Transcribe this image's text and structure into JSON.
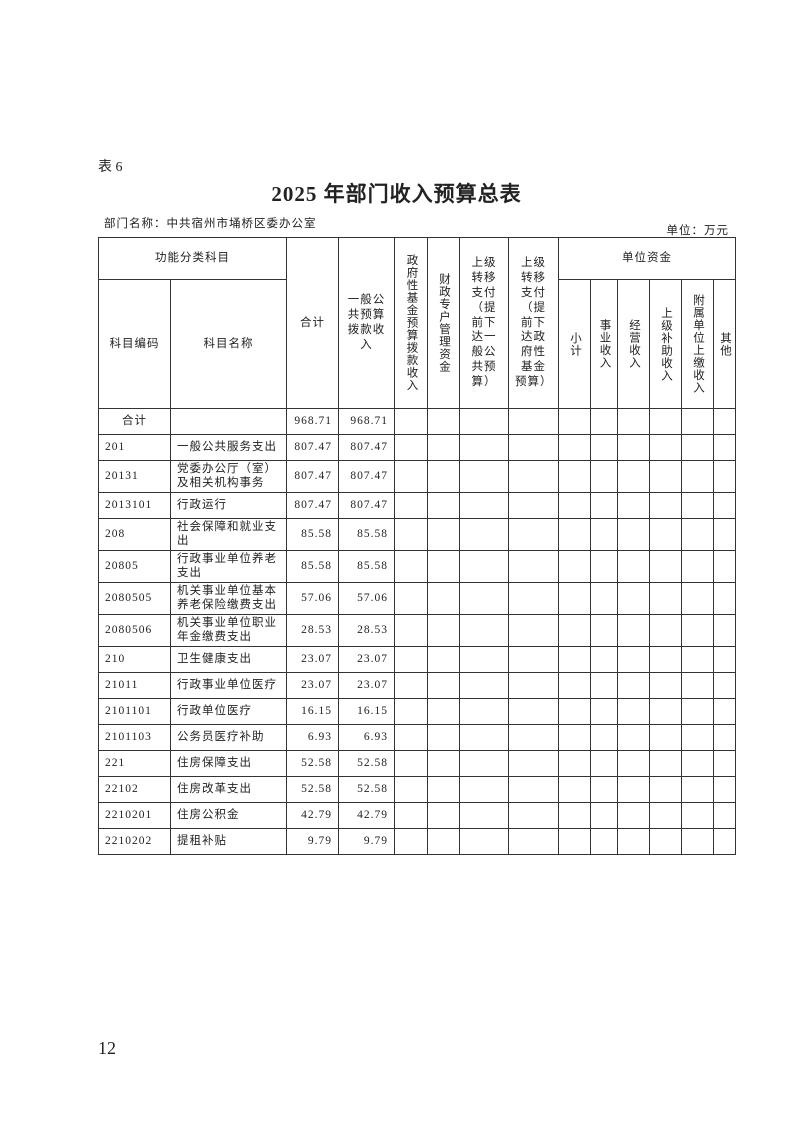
{
  "table_label": "表 6",
  "title": "2025 年部门收入预算总表",
  "department": "部门名称：中共宿州市埇桥区委办公室",
  "unit": "单位：万元",
  "headers": {
    "func_class": "功能分类科目",
    "code": "科目编码",
    "name": "科目名称",
    "total": "合计",
    "general": "一般公共预算拨款收入",
    "gov_fund": "政府性基金预算拨款收入",
    "fiscal_special": "财政专户管理资金",
    "transfer_general": "上级转移支付（提前下达一般公共预算）",
    "transfer_fund": "上级转移支付（提前下达政府性基金预算）",
    "unit_funds": "单位资金",
    "subtotal": "小计",
    "business": "事业收入",
    "operating": "经营收入",
    "superior_subsidy": "上级补助收入",
    "affiliated": "附属单位上缴收入",
    "other": "其他"
  },
  "rows": [
    {
      "code": "合计",
      "name": "",
      "total": "968.71",
      "general": "968.71"
    },
    {
      "code": "201",
      "name": "一般公共服务支出",
      "total": "807.47",
      "general": "807.47"
    },
    {
      "code": "20131",
      "name": "党委办公厅（室）及相关机构事务",
      "total": "807.47",
      "general": "807.47"
    },
    {
      "code": "2013101",
      "name": "行政运行",
      "total": "807.47",
      "general": "807.47"
    },
    {
      "code": "208",
      "name": "社会保障和就业支出",
      "total": "85.58",
      "general": "85.58"
    },
    {
      "code": "20805",
      "name": "行政事业单位养老支出",
      "total": "85.58",
      "general": "85.58"
    },
    {
      "code": "2080505",
      "name": "机关事业单位基本养老保险缴费支出",
      "total": "57.06",
      "general": "57.06"
    },
    {
      "code": "2080506",
      "name": "机关事业单位职业年金缴费支出",
      "total": "28.53",
      "general": "28.53"
    },
    {
      "code": "210",
      "name": "卫生健康支出",
      "total": "23.07",
      "general": "23.07"
    },
    {
      "code": "21011",
      "name": "行政事业单位医疗",
      "total": "23.07",
      "general": "23.07"
    },
    {
      "code": "2101101",
      "name": "行政单位医疗",
      "total": "16.15",
      "general": "16.15"
    },
    {
      "code": "2101103",
      "name": "公务员医疗补助",
      "total": "6.93",
      "general": "6.93"
    },
    {
      "code": "221",
      "name": "住房保障支出",
      "total": "52.58",
      "general": "52.58"
    },
    {
      "code": "22102",
      "name": "住房改革支出",
      "total": "52.58",
      "general": "52.58"
    },
    {
      "code": "2210201",
      "name": "住房公积金",
      "total": "42.79",
      "general": "42.79"
    },
    {
      "code": "2210202",
      "name": "提租补贴",
      "total": "9.79",
      "general": "9.79"
    }
  ],
  "page_number": "12"
}
